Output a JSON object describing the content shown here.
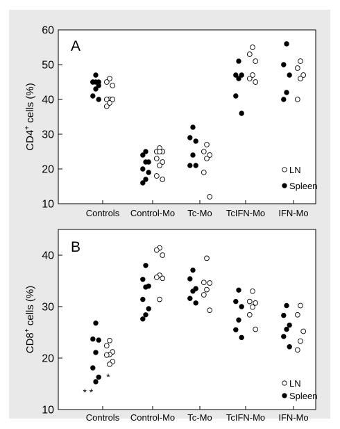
{
  "chart_data": [
    {
      "type": "scatter",
      "panel_label": "A",
      "ylabel_main": "CD4",
      "ylabel_sup": "+",
      "ylabel_rest": " cells (%)",
      "ylim": [
        10,
        60
      ],
      "yticks": [
        10,
        20,
        30,
        40,
        50,
        60
      ],
      "categories": [
        "Controls",
        "Control-Mo",
        "Tc-Mo",
        "TcIFN-Mo",
        "IFN-Mo"
      ],
      "legend": {
        "placement": "bottom-right",
        "items": [
          {
            "label": "LN",
            "marker": "open-circle"
          },
          {
            "label": "Spleen",
            "marker": "filled-circle"
          }
        ]
      },
      "series": [
        {
          "name": "Spleen",
          "marker": "filled",
          "groups": [
            [
              47,
              45,
              45,
              45,
              45,
              44,
              43,
              41,
              40
            ],
            [
              25,
              24,
              22,
              22,
              20,
              19,
              17,
              16
            ],
            [
              32,
              29,
              28,
              24,
              21,
              21
            ],
            [
              51,
              47,
              47,
              46,
              41,
              36
            ],
            [
              56,
              50,
              47,
              42,
              40
            ]
          ]
        },
        {
          "name": "LN",
          "marker": "open",
          "groups": [
            [
              46,
              45,
              44,
              40,
              40,
              40,
              39,
              38
            ],
            [
              26,
              25,
              25,
              25,
              23,
              22,
              21,
              18,
              17
            ],
            [
              27,
              25,
              24,
              23,
              19,
              12
            ],
            [
              55,
              53,
              51,
              47,
              46,
              45
            ],
            [
              51,
              49,
              47,
              46,
              40
            ]
          ]
        }
      ],
      "annotations": []
    },
    {
      "type": "scatter",
      "panel_label": "B",
      "ylabel_main": "CD8",
      "ylabel_sup": "+",
      "ylabel_rest": " cells (%)",
      "ylim": [
        10,
        45
      ],
      "yticks": [
        10,
        20,
        30,
        40
      ],
      "categories": [
        "Controls",
        "Control-Mo",
        "Tc-Mo",
        "TcIFN-Mo",
        "IFN-Mo"
      ],
      "legend": {
        "placement": "bottom-right",
        "items": [
          {
            "label": "LN",
            "marker": "open-circle"
          },
          {
            "label": "Spleen",
            "marker": "filled-circle"
          }
        ]
      },
      "series": [
        {
          "name": "Spleen",
          "marker": "filled",
          "groups": [
            [
              26.8,
              23.7,
              23.5,
              21.1,
              18.1,
              16.3,
              15.4
            ],
            [
              38,
              35.3,
              34,
              33.8,
              31.4,
              29.6,
              28.4,
              27.6
            ],
            [
              37.1,
              35.4,
              33.5,
              33,
              31.6,
              30.7
            ],
            [
              33.2,
              31,
              30,
              27.4,
              25.5,
              24
            ],
            [
              30.2,
              28.3,
              26.4,
              25.6,
              24.2,
              22.2
            ]
          ]
        },
        {
          "name": "LN",
          "marker": "open",
          "groups": [
            [
              23.4,
              22.4,
              21.2,
              20.7,
              20.6,
              19.3,
              18.8
            ],
            [
              41.4,
              41,
              40,
              36.1,
              35.7,
              35.5,
              31.4
            ],
            [
              39.4,
              34.7,
              34.6,
              33.3,
              32.3,
              29.3
            ],
            [
              33,
              31,
              30.7,
              29.9,
              28.4,
              25.6
            ],
            [
              30.2,
              28.4,
              25.2,
              23.3,
              21.6
            ]
          ]
        }
      ],
      "annotations": [
        {
          "text": "* *",
          "category": 0,
          "offset": -0.32,
          "y": 13.5
        },
        {
          "text": "*",
          "category": 0,
          "offset": 0.12,
          "y": 16.5
        }
      ]
    }
  ]
}
